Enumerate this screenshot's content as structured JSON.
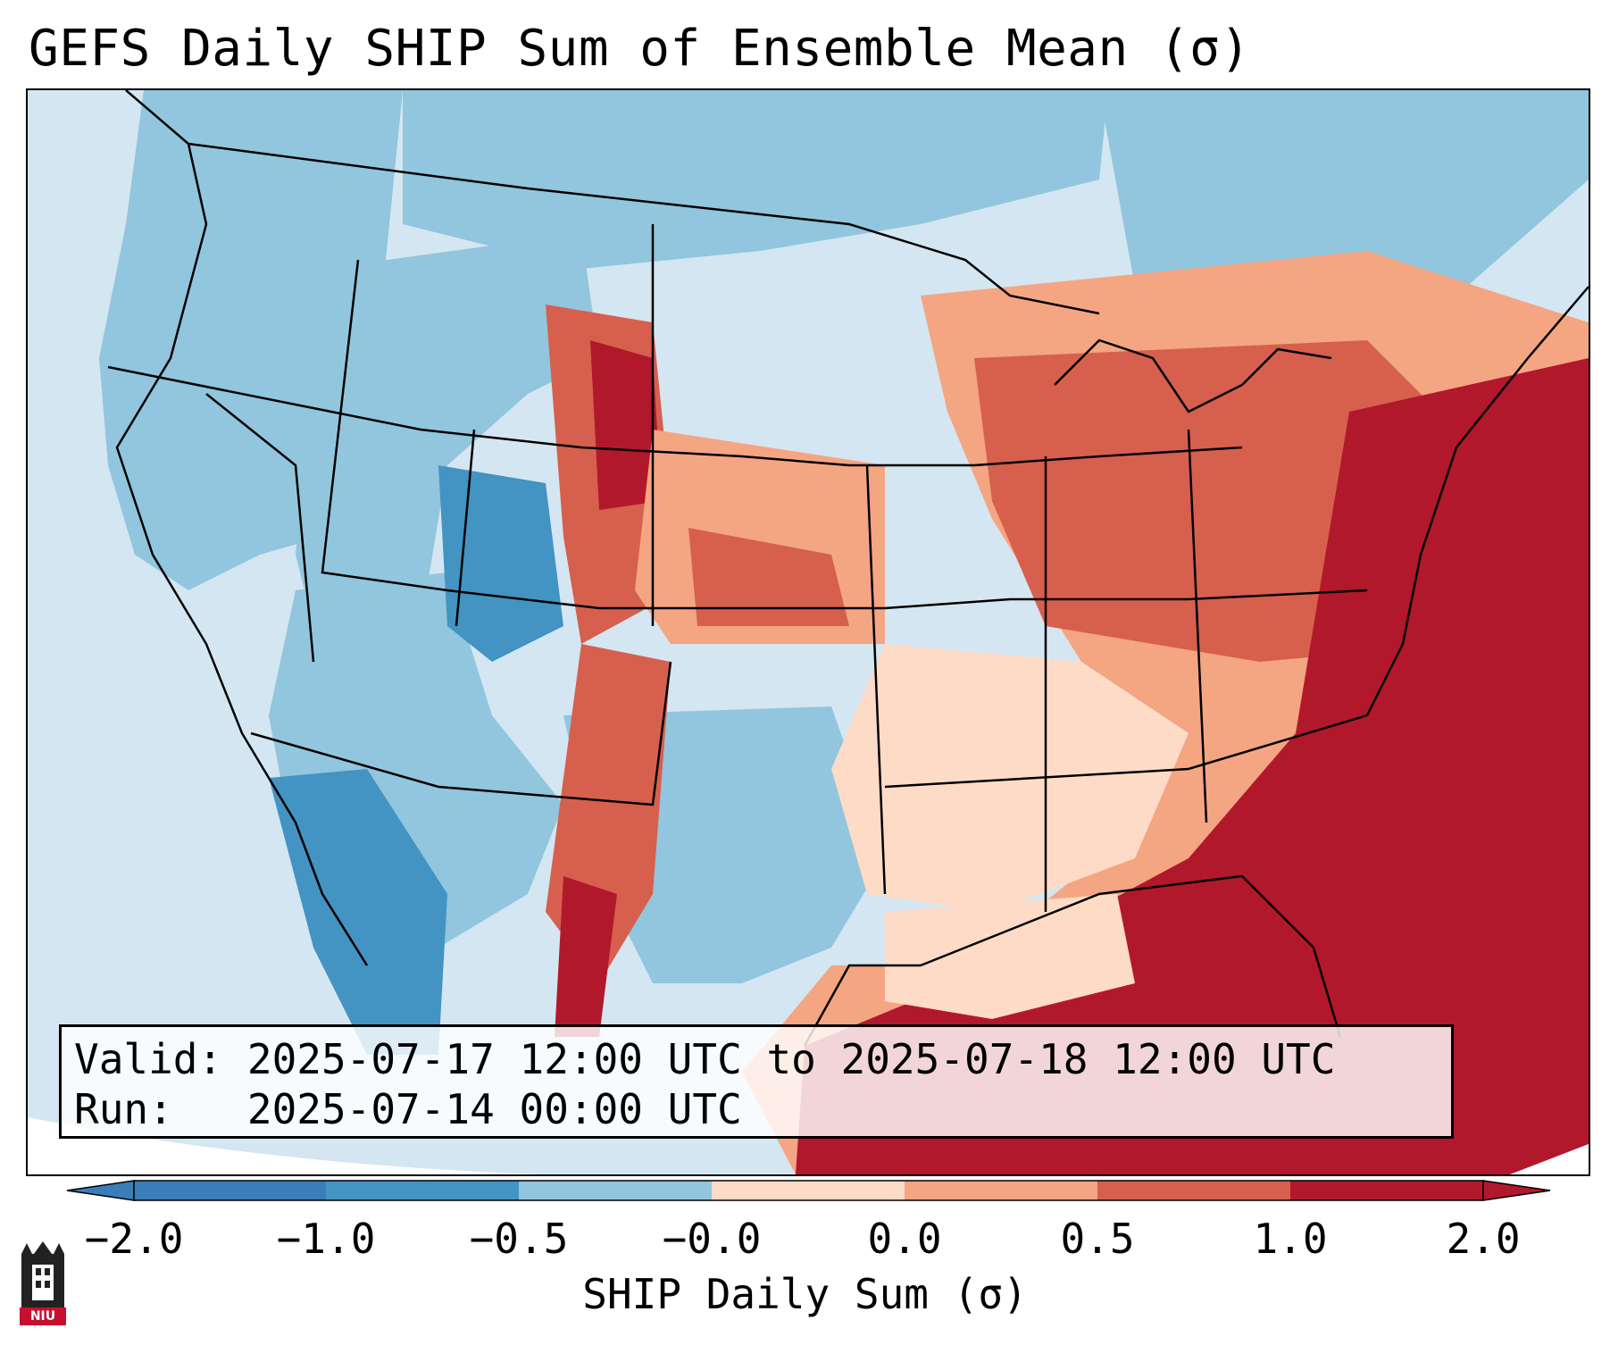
{
  "title": "GEFS Daily SHIP Sum of Ensemble Mean (σ)",
  "info": {
    "valid_label": "Valid:",
    "valid_value": "2025-07-17 12:00 UTC to 2025-07-18 12:00 UTC",
    "run_label": "Run:",
    "run_value": "2025-07-14 00:00 UTC"
  },
  "colorbar": {
    "label": "SHIP Daily Sum (σ)",
    "ticks": [
      "−2.0",
      "−1.0",
      "−0.5",
      "−0.0",
      "0.0",
      "0.5",
      "1.0",
      "2.0"
    ],
    "colors": [
      "#3a7db8",
      "#4393c3",
      "#92c5de",
      "#d1e5f0",
      "#fddbc7",
      "#f4a582",
      "#d6604d",
      "#b2182b"
    ]
  },
  "logo": {
    "text": "NIU"
  }
}
